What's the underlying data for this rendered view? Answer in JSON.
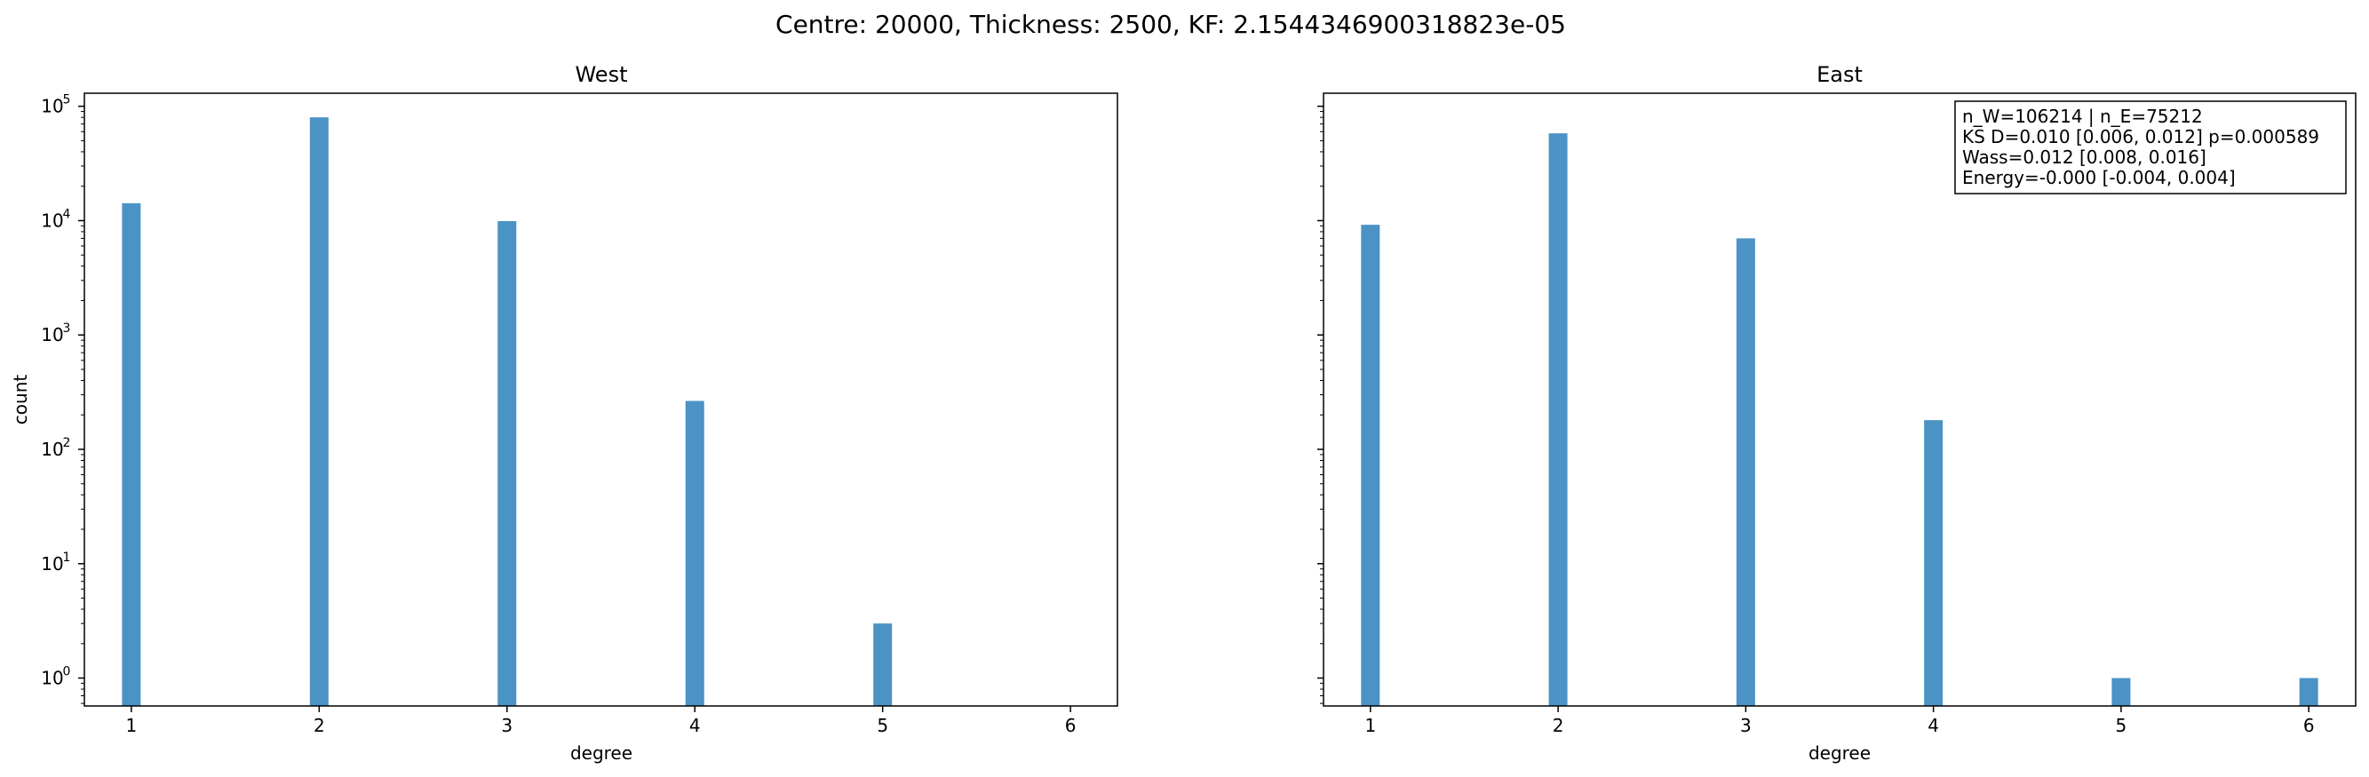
{
  "suptitle": "Centre: 20000, Thickness: 2500, KF: 2.1544346900318823e-05",
  "colors": {
    "bar": "#4c93c5",
    "axis": "#000000",
    "background": "#ffffff"
  },
  "chart_data": [
    {
      "type": "bar",
      "title": "West",
      "xlabel": "degree",
      "ylabel": "count",
      "yscale": "log",
      "ylim": [
        0.57,
        130000
      ],
      "xlim": [
        0.75,
        6.25
      ],
      "x": [
        1,
        2,
        3,
        4,
        5
      ],
      "values": [
        14200,
        80000,
        9900,
        265,
        3
      ],
      "xticks": [
        "1",
        "2",
        "3",
        "4",
        "5",
        "6"
      ],
      "yticks": [
        {
          "base": "10",
          "exp": "0",
          "value": 1
        },
        {
          "base": "10",
          "exp": "1",
          "value": 10
        },
        {
          "base": "10",
          "exp": "2",
          "value": 100
        },
        {
          "base": "10",
          "exp": "3",
          "value": 1000
        },
        {
          "base": "10",
          "exp": "4",
          "value": 10000
        },
        {
          "base": "10",
          "exp": "5",
          "value": 100000
        }
      ]
    },
    {
      "type": "bar",
      "title": "East",
      "xlabel": "degree",
      "ylabel": "",
      "yscale": "log",
      "ylim": [
        0.57,
        130000
      ],
      "xlim": [
        0.75,
        6.25
      ],
      "x": [
        1,
        2,
        3,
        4,
        5,
        6
      ],
      "values": [
        9200,
        58000,
        7000,
        180,
        1,
        1
      ],
      "xticks": [
        "1",
        "2",
        "3",
        "4",
        "5",
        "6"
      ],
      "yticks": [],
      "stats_box": [
        "n_W=106214 | n_E=75212",
        "KS D=0.010 [0.006, 0.012]  p=0.000589",
        "Wass=0.012 [0.008, 0.016]",
        "Energy=-0.000 [-0.004, 0.004]"
      ]
    }
  ]
}
